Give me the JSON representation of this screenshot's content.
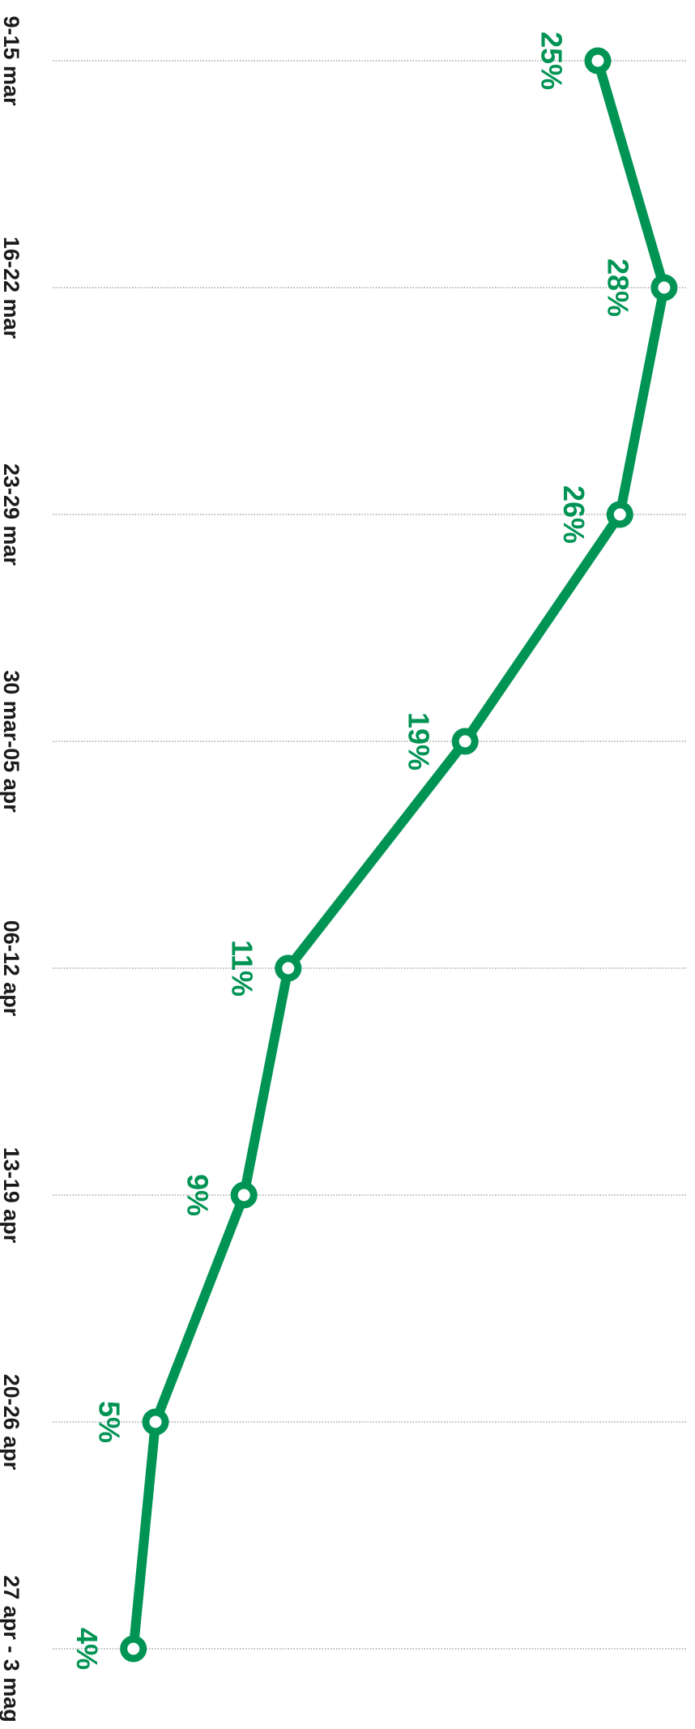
{
  "chart_data": {
    "type": "line",
    "orientation": "rotated-90-clockwise",
    "categories": [
      "9-15 mar",
      "16-22 mar",
      "23-29 mar",
      "30 mar-05 apr",
      "06-12 apr",
      "13-19 apr",
      "20-26 apr",
      "27 apr - 3 mag"
    ],
    "series": [
      {
        "values": [
          25,
          28,
          26,
          19,
          11,
          9,
          5,
          4
        ],
        "labels": [
          "25%",
          "28%",
          "26%",
          "19%",
          "11%",
          "9%",
          "5%",
          "4%"
        ],
        "color": "#009454"
      }
    ],
    "title": "",
    "xlabel": "",
    "ylabel": "",
    "ylim": [
      0,
      30
    ],
    "grid": true,
    "grid_color": "#777777",
    "label_color": "#1a1a1a"
  }
}
